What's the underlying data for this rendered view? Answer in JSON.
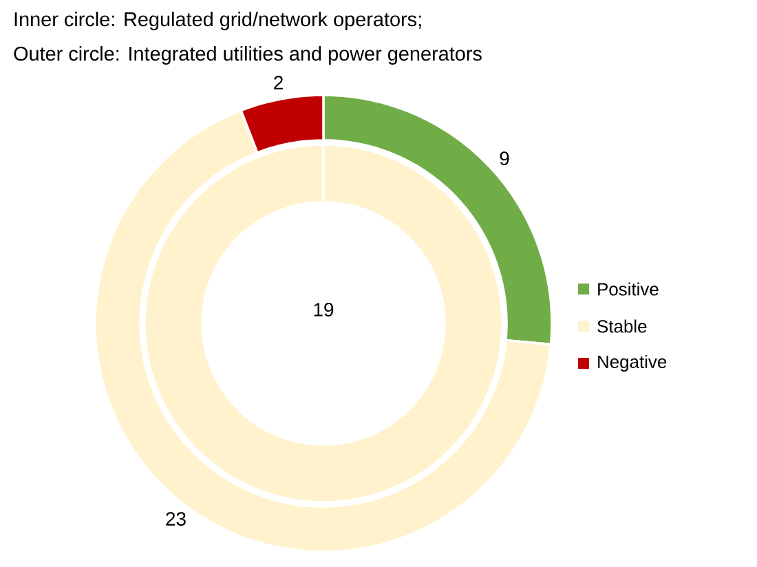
{
  "chart_data": {
    "type": "donut",
    "title": "Inner circle: Regulated grid/network operators;",
    "subtitle": "Outer circle: Integrated utilities and power generators",
    "categories": [
      "Positive",
      "Stable",
      "Negative"
    ],
    "colors": [
      "#70ad47",
      "#fff2cc",
      "#c00000"
    ],
    "series": [
      {
        "values": [
          0,
          19,
          0
        ]
      },
      {
        "values": [
          9,
          23,
          2
        ]
      }
    ],
    "data_labels": true,
    "legend": "right"
  }
}
